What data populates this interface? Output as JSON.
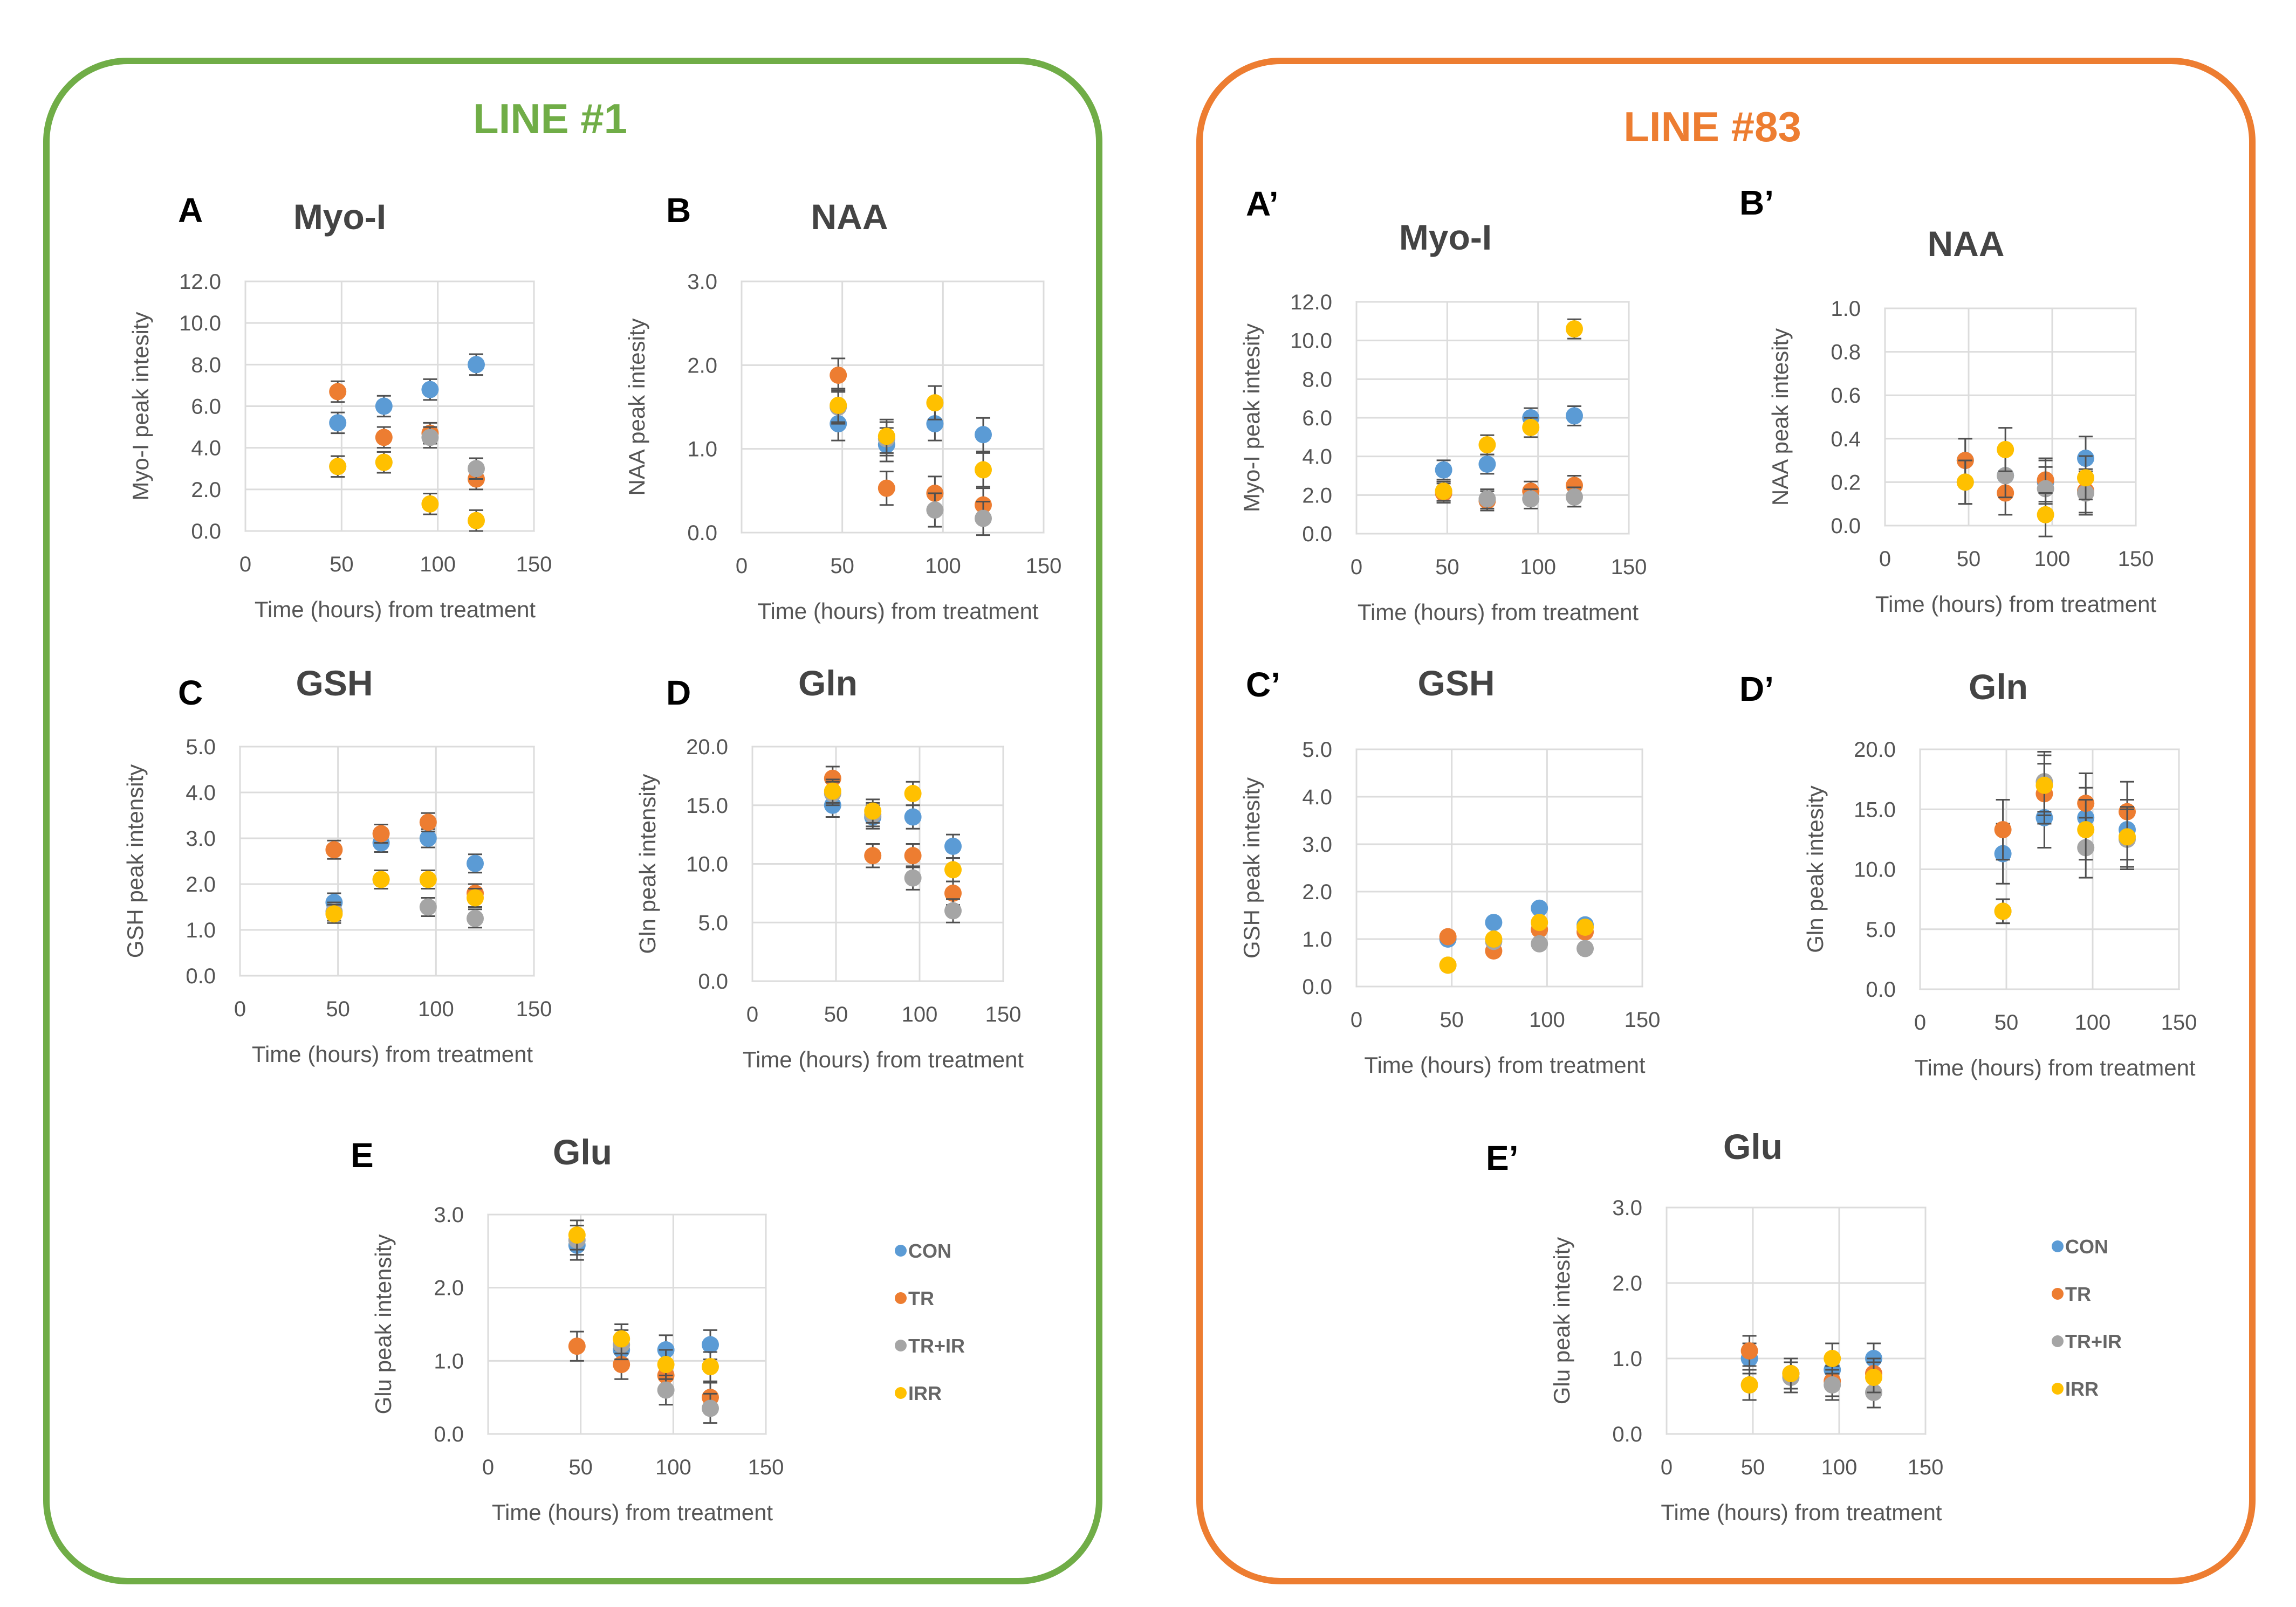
{
  "figure": {
    "series_colors": {
      "CON": "#5b9bd5",
      "TR": "#ed7d31",
      "TR+IR": "#a5a5a5",
      "IRR": "#ffc000"
    },
    "lines": [
      {
        "id": "line1",
        "title": "LINE #1",
        "color": "#70ad47"
      },
      {
        "id": "line83",
        "title": "LINE #83",
        "color": "#ed7d31"
      }
    ]
  },
  "chart_data": [
    {
      "id": "A",
      "letter": "A",
      "line": "LINE #1",
      "type": "scatter",
      "title": "Myo-I",
      "xlabel": "Time (hours) from treatment",
      "ylabel": "Myo-I peak intesity",
      "xlim": [
        0,
        150
      ],
      "xticks": [
        0,
        50,
        100,
        150
      ],
      "ylim": [
        0,
        12
      ],
      "yticks": [
        "0.0",
        "2.0",
        "4.0",
        "6.0",
        "8.0",
        "10.0",
        "12.0"
      ],
      "x": [
        48,
        72,
        96,
        120
      ],
      "series": [
        {
          "name": "CON",
          "values": [
            5.2,
            6.0,
            6.8,
            8.0
          ],
          "err": [
            0.5,
            0.5,
            0.5,
            0.5
          ]
        },
        {
          "name": "TR",
          "values": [
            6.7,
            4.5,
            4.7,
            2.5
          ],
          "err": [
            0.5,
            0.5,
            0.5,
            0.5
          ]
        },
        {
          "name": "TR+IR",
          "values": [
            3.1,
            3.3,
            4.5,
            3.0
          ],
          "err": [
            0.5,
            0.5,
            0.5,
            0.5
          ]
        },
        {
          "name": "IRR",
          "values": [
            3.1,
            3.3,
            1.3,
            0.5
          ],
          "err": [
            0.5,
            0.5,
            0.5,
            0.5
          ]
        }
      ]
    },
    {
      "id": "B",
      "letter": "B",
      "line": "LINE #1",
      "type": "scatter",
      "title": "NAA",
      "xlabel": "Time (hours) from treatment",
      "ylabel": "NAA peak intesity",
      "xlim": [
        0,
        150
      ],
      "xticks": [
        0,
        50,
        100,
        150
      ],
      "ylim": [
        0,
        3
      ],
      "yticks": [
        "0.0",
        "1.0",
        "2.0",
        "3.0"
      ],
      "x": [
        48,
        72,
        96,
        120
      ],
      "series": [
        {
          "name": "CON",
          "values": [
            1.3,
            1.05,
            1.3,
            1.17
          ],
          "err": [
            0.2,
            0.2,
            0.2,
            0.2
          ]
        },
        {
          "name": "TR",
          "values": [
            1.88,
            0.53,
            0.47,
            0.33
          ],
          "err": [
            0.2,
            0.2,
            0.2,
            0.2
          ]
        },
        {
          "name": "TR+IR",
          "values": [
            1.5,
            1.12,
            0.27,
            0.17
          ],
          "err": [
            0.2,
            0.2,
            0.2,
            0.2
          ]
        },
        {
          "name": "IRR",
          "values": [
            1.52,
            1.15,
            1.55,
            0.75
          ],
          "err": [
            0.2,
            0.2,
            0.2,
            0.2
          ]
        }
      ]
    },
    {
      "id": "C",
      "letter": "C",
      "line": "LINE #1",
      "type": "scatter",
      "title": "GSH",
      "xlabel": "Time (hours) from treatment",
      "ylabel": "GSH peak intensity",
      "xlim": [
        0,
        150
      ],
      "xticks": [
        0,
        50,
        100,
        150
      ],
      "ylim": [
        0,
        5
      ],
      "yticks": [
        "0.0",
        "1.0",
        "2.0",
        "3.0",
        "4.0",
        "5.0"
      ],
      "x": [
        48,
        72,
        96,
        120
      ],
      "series": [
        {
          "name": "CON",
          "values": [
            1.6,
            2.9,
            3.0,
            2.45
          ],
          "err": [
            0.2,
            0.2,
            0.2,
            0.2
          ]
        },
        {
          "name": "TR",
          "values": [
            2.75,
            3.1,
            3.35,
            1.8
          ],
          "err": [
            0.2,
            0.2,
            0.2,
            0.2
          ]
        },
        {
          "name": "TR+IR",
          "values": [
            1.4,
            2.1,
            1.5,
            1.25
          ],
          "err": [
            0.2,
            0.2,
            0.2,
            0.2
          ]
        },
        {
          "name": "IRR",
          "values": [
            1.35,
            2.1,
            2.1,
            1.7
          ],
          "err": [
            0.2,
            0.2,
            0.2,
            0.2
          ]
        }
      ]
    },
    {
      "id": "D",
      "letter": "D",
      "line": "LINE #1",
      "type": "scatter",
      "title": "Gln",
      "xlabel": "Time (hours) from treatment",
      "ylabel": "Gln peak intensity",
      "xlim": [
        0,
        150
      ],
      "xticks": [
        0,
        50,
        100,
        150
      ],
      "ylim": [
        0,
        20
      ],
      "yticks": [
        "0.0",
        "5.0",
        "10.0",
        "15.0",
        "20.0"
      ],
      "x": [
        48,
        72,
        96,
        120
      ],
      "series": [
        {
          "name": "CON",
          "values": [
            15.0,
            14.0,
            14.0,
            11.5
          ],
          "err": [
            1.0,
            1.0,
            1.0,
            1.0
          ]
        },
        {
          "name": "TR",
          "values": [
            17.3,
            10.7,
            10.7,
            7.5
          ],
          "err": [
            1.0,
            1.0,
            1.0,
            1.0
          ]
        },
        {
          "name": "TR+IR",
          "values": [
            16.0,
            14.2,
            8.8,
            6.0
          ],
          "err": [
            1.0,
            1.0,
            1.0,
            1.0
          ]
        },
        {
          "name": "IRR",
          "values": [
            16.2,
            14.5,
            16.0,
            9.5
          ],
          "err": [
            1.0,
            1.0,
            1.0,
            1.0
          ]
        }
      ]
    },
    {
      "id": "E",
      "letter": "E",
      "line": "LINE #1",
      "type": "scatter",
      "title": "Glu",
      "xlabel": "Time (hours) from treatment",
      "ylabel": "Glu peak intensity",
      "xlim": [
        0,
        150
      ],
      "xticks": [
        0,
        50,
        100,
        150
      ],
      "ylim": [
        0,
        3
      ],
      "yticks": [
        "0.0",
        "1.0",
        "2.0",
        "3.0"
      ],
      "x": [
        48,
        72,
        96,
        120
      ],
      "series": [
        {
          "name": "CON",
          "values": [
            2.58,
            1.15,
            1.15,
            1.22
          ],
          "err": [
            0.2,
            0.2,
            0.2,
            0.2
          ]
        },
        {
          "name": "TR",
          "values": [
            1.2,
            0.95,
            0.8,
            0.5
          ],
          "err": [
            0.2,
            0.2,
            0.2,
            0.2
          ]
        },
        {
          "name": "TR+IR",
          "values": [
            2.65,
            1.22,
            0.6,
            0.35
          ],
          "err": [
            0.2,
            0.2,
            0.2,
            0.2
          ]
        },
        {
          "name": "IRR",
          "values": [
            2.72,
            1.3,
            0.95,
            0.92
          ],
          "err": [
            0.2,
            0.2,
            0.2,
            0.2
          ]
        }
      ],
      "legend": [
        "CON",
        "TR",
        "TR+IR",
        "IRR"
      ],
      "legend_position": "right"
    },
    {
      "id": "A2",
      "letter": "A’",
      "line": "LINE #83",
      "type": "scatter",
      "title": "Myo-I",
      "xlabel": "Time (hours) from treatment",
      "ylabel": "Myo-I peak intesity",
      "xlim": [
        0,
        150
      ],
      "xticks": [
        0,
        50,
        100,
        150
      ],
      "ylim": [
        0,
        12
      ],
      "yticks": [
        "0.0",
        "2.0",
        "4.0",
        "6.0",
        "8.0",
        "10.0",
        "12.0"
      ],
      "x": [
        48,
        72,
        96,
        120
      ],
      "series": [
        {
          "name": "CON",
          "values": [
            3.3,
            3.6,
            6.0,
            6.1
          ],
          "err": [
            0.5,
            0.5,
            0.5,
            0.5
          ]
        },
        {
          "name": "TR",
          "values": [
            2.1,
            1.7,
            2.2,
            2.5
          ],
          "err": [
            0.5,
            0.5,
            0.5,
            0.5
          ]
        },
        {
          "name": "TR+IR",
          "values": [
            2.2,
            1.8,
            1.8,
            1.9
          ],
          "err": [
            0.5,
            0.5,
            0.5,
            0.5
          ]
        },
        {
          "name": "IRR",
          "values": [
            2.2,
            4.6,
            5.5,
            10.6
          ],
          "err": [
            0.5,
            0.5,
            0.5,
            0.5
          ]
        }
      ]
    },
    {
      "id": "B2",
      "letter": "B’",
      "line": "LINE #83",
      "type": "scatter",
      "title": "NAA",
      "xlabel": "Time (hours) from treatment",
      "ylabel": "NAA peak intesity",
      "xlim": [
        0,
        150
      ],
      "xticks": [
        0,
        50,
        100,
        150
      ],
      "ylim": [
        0,
        1
      ],
      "yticks": [
        "0.0",
        "0.2",
        "0.4",
        "0.6",
        "0.8",
        "1.0"
      ],
      "x": [
        48,
        72,
        96,
        120
      ],
      "series": [
        {
          "name": "CON",
          "values": [
            0.3,
            0.23,
            0.2,
            0.31
          ],
          "err": [
            0.1,
            0.1,
            0.1,
            0.1
          ]
        },
        {
          "name": "TR",
          "values": [
            0.3,
            0.15,
            0.21,
            0.16
          ],
          "err": [
            0.1,
            0.1,
            0.1,
            0.1
          ]
        },
        {
          "name": "TR+IR",
          "values": [
            0.2,
            0.23,
            0.17,
            0.15
          ],
          "err": [
            0.1,
            0.1,
            0.1,
            0.1
          ]
        },
        {
          "name": "IRR",
          "values": [
            0.2,
            0.35,
            0.05,
            0.22
          ],
          "err": [
            0.1,
            0.1,
            0.1,
            0.1
          ]
        }
      ]
    },
    {
      "id": "C2",
      "letter": "C’",
      "line": "LINE #83",
      "type": "scatter",
      "title": "GSH",
      "xlabel": "Time (hours) from treatment",
      "ylabel": "GSH peak intesity",
      "xlim": [
        0,
        150
      ],
      "xticks": [
        0,
        50,
        100,
        150
      ],
      "ylim": [
        0,
        5
      ],
      "yticks": [
        "0.0",
        "1.0",
        "2.0",
        "3.0",
        "4.0",
        "5.0"
      ],
      "x": [
        48,
        72,
        96,
        120
      ],
      "series": [
        {
          "name": "CON",
          "values": [
            1.0,
            1.35,
            1.65,
            1.3
          ],
          "err": [
            0.05,
            0.05,
            0.05,
            0.05
          ]
        },
        {
          "name": "TR",
          "values": [
            1.05,
            0.75,
            1.2,
            1.15
          ],
          "err": [
            0.05,
            0.05,
            0.05,
            0.05
          ]
        },
        {
          "name": "TR+IR",
          "values": [
            0.45,
            0.95,
            0.9,
            0.8
          ],
          "err": [
            0.05,
            0.05,
            0.05,
            0.05
          ]
        },
        {
          "name": "IRR",
          "values": [
            0.45,
            1.0,
            1.35,
            1.25
          ],
          "err": [
            0.05,
            0.05,
            0.05,
            0.05
          ]
        }
      ]
    },
    {
      "id": "D2",
      "letter": "D’",
      "line": "LINE #83",
      "type": "scatter",
      "title": "Gln",
      "xlabel": "Time (hours) from treatment",
      "ylabel": "Gln peak intesity",
      "xlim": [
        0,
        150
      ],
      "xticks": [
        0,
        50,
        100,
        150
      ],
      "ylim": [
        0,
        20
      ],
      "yticks": [
        "0.0",
        "5.0",
        "10.0",
        "15.0",
        "20.0"
      ],
      "x": [
        48,
        72,
        96,
        120
      ],
      "series": [
        {
          "name": "CON",
          "values": [
            11.3,
            14.3,
            14.3,
            13.3
          ],
          "err": [
            2.5,
            2.5,
            2.5,
            2.5
          ]
        },
        {
          "name": "TR",
          "values": [
            13.3,
            16.3,
            15.5,
            14.8
          ],
          "err": [
            2.5,
            2.5,
            2.5,
            2.5
          ]
        },
        {
          "name": "TR+IR",
          "values": [
            6.5,
            17.3,
            11.8,
            12.5
          ],
          "err": [
            1.0,
            2.5,
            2.5,
            2.5
          ]
        },
        {
          "name": "IRR",
          "values": [
            6.5,
            17.0,
            13.3,
            12.7
          ],
          "err": [
            1.0,
            2.5,
            2.5,
            2.5
          ]
        }
      ]
    },
    {
      "id": "E2",
      "letter": "E’",
      "line": "LINE #83",
      "type": "scatter",
      "title": "Glu",
      "xlabel": "Time (hours) from treatment",
      "ylabel": "Glu peak intesity",
      "xlim": [
        0,
        150
      ],
      "xticks": [
        0,
        50,
        100,
        150
      ],
      "ylim": [
        0,
        3
      ],
      "yticks": [
        "0.0",
        "1.0",
        "2.0",
        "3.0"
      ],
      "x": [
        48,
        72,
        96,
        120
      ],
      "series": [
        {
          "name": "CON",
          "values": [
            1.0,
            0.8,
            0.85,
            1.0
          ],
          "err": [
            0.2,
            0.2,
            0.2,
            0.2
          ]
        },
        {
          "name": "TR",
          "values": [
            1.1,
            0.8,
            0.7,
            0.8
          ],
          "err": [
            0.2,
            0.2,
            0.2,
            0.2
          ]
        },
        {
          "name": "TR+IR",
          "values": [
            0.65,
            0.75,
            0.65,
            0.55
          ],
          "err": [
            0.2,
            0.2,
            0.2,
            0.2
          ]
        },
        {
          "name": "IRR",
          "values": [
            0.65,
            0.8,
            1.0,
            0.75
          ],
          "err": [
            0.2,
            0.2,
            0.2,
            0.2
          ]
        }
      ],
      "legend": [
        "CON",
        "TR",
        "TR+IR",
        "IRR"
      ],
      "legend_position": "right"
    }
  ]
}
